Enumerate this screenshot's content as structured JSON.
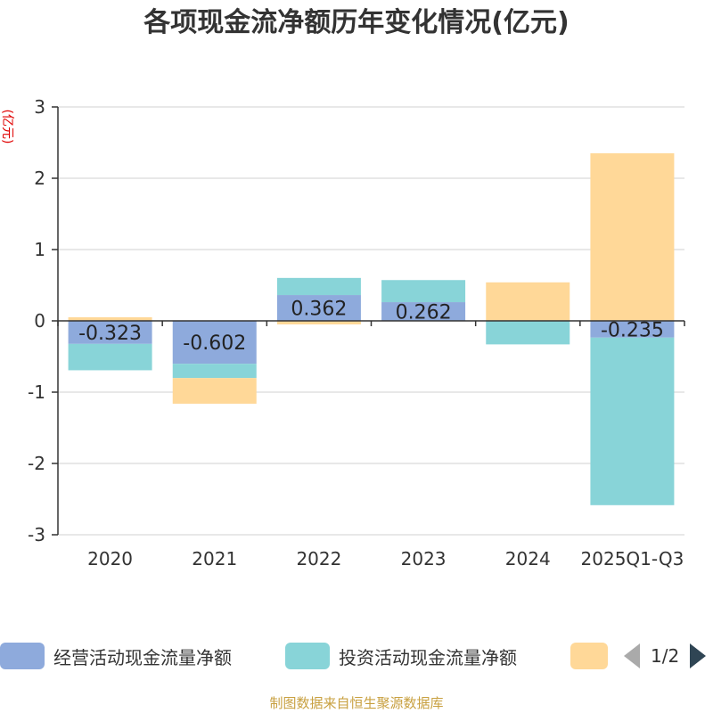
{
  "chart_data": {
    "type": "bar",
    "stacked": true,
    "title": "各项现金流净额历年变化情况(亿元)",
    "ylabel": "(亿元)",
    "ylim": [
      -3,
      3
    ],
    "yticks": [
      3,
      2,
      1,
      0,
      -1,
      -2,
      -3
    ],
    "categories": [
      "2020",
      "2021",
      "2022",
      "2023",
      "2024",
      "2025Q1-Q3"
    ],
    "series": [
      {
        "name": "经营活动现金流量净额",
        "color": "#8eaadc",
        "values": [
          -0.323,
          -0.602,
          0.362,
          0.262,
          0.0,
          -0.235
        ],
        "labels": [
          "-0.323",
          "-0.602",
          "0.362",
          "0.262",
          "",
          "-0.235"
        ]
      },
      {
        "name": "投资活动现金流量净额",
        "color": "#88d4d8",
        "values": [
          -0.37,
          -0.2,
          0.24,
          0.31,
          -0.33,
          -2.35
        ]
      },
      {
        "name": "",
        "color": "#ffd898",
        "values": [
          0.05,
          -0.36,
          -0.05,
          0.0,
          0.54,
          2.35
        ]
      }
    ],
    "legend": {
      "position": "bottom",
      "page": "1/2"
    }
  },
  "footer": {
    "source": "制图数据来自恒生聚源数据库"
  }
}
